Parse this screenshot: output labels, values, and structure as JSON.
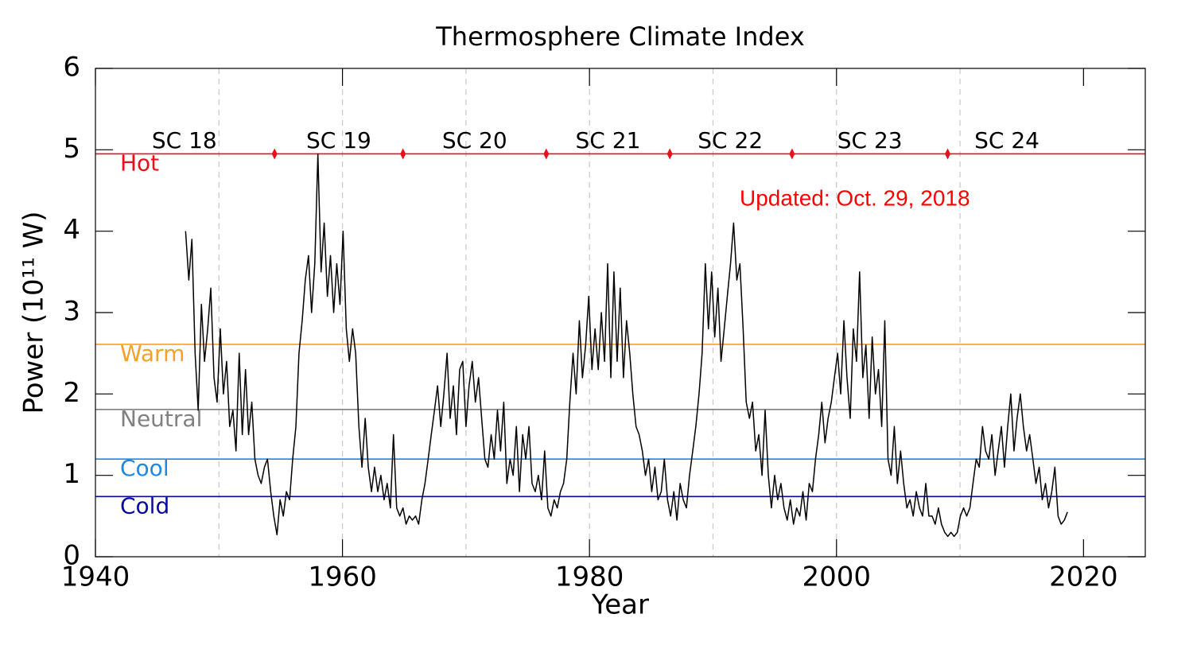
{
  "chart_data": {
    "type": "line",
    "title": "Thermosphere Climate Index",
    "xlabel": "Year",
    "ylabel": "Power (10¹¹ W)",
    "annotation": {
      "text": "Updated: Oct. 29, 2018",
      "color": "#ff0000"
    },
    "xlim": [
      1940,
      2025
    ],
    "ylim": [
      0,
      6
    ],
    "xticks": [
      1940,
      1960,
      1980,
      2000,
      2020
    ],
    "yticks": [
      0,
      1,
      2,
      3,
      4,
      5,
      6
    ],
    "xgrid": [
      1950,
      1960,
      1970,
      1980,
      1990,
      2000,
      2010
    ],
    "color": "#000000",
    "reference_lines": [
      {
        "name": "Hot",
        "value": 4.95,
        "color": "#e8101c"
      },
      {
        "name": "Warm",
        "value": 2.61,
        "color": "#f5a028"
      },
      {
        "name": "Neutral",
        "value": 1.81,
        "color": "#808080"
      },
      {
        "name": "Cool",
        "value": 1.2,
        "color": "#1e88e5"
      },
      {
        "name": "Cold",
        "value": 0.74,
        "color": "#0a0aa0"
      }
    ],
    "cycle_boundaries": [
      1954.5,
      1964.9,
      1976.5,
      1986.5,
      1996.4,
      2009.0
    ],
    "boundary_color": "#e8101c",
    "cycles": [
      {
        "label": "SC 18",
        "x": 1947.2
      },
      {
        "label": "SC 19",
        "x": 1959.7
      },
      {
        "label": "SC 20",
        "x": 1970.7
      },
      {
        "label": "SC 21",
        "x": 1981.5
      },
      {
        "label": "SC 22",
        "x": 1991.4
      },
      {
        "label": "SC 23",
        "x": 2002.7
      },
      {
        "label": "SC 24",
        "x": 2013.8
      }
    ],
    "x": [
      1947.3,
      1947.56,
      1947.81,
      1948.07,
      1948.32,
      1948.58,
      1948.83,
      1949.09,
      1949.34,
      1949.6,
      1949.85,
      1950.11,
      1950.36,
      1950.62,
      1950.87,
      1951.13,
      1951.38,
      1951.64,
      1951.89,
      1952.15,
      1952.4,
      1952.66,
      1952.91,
      1953.17,
      1953.42,
      1953.68,
      1953.93,
      1954.19,
      1954.44,
      1954.7,
      1954.95,
      1955.21,
      1955.46,
      1955.72,
      1955.97,
      1956.23,
      1956.48,
      1956.74,
      1956.99,
      1957.25,
      1957.5,
      1957.76,
      1958.01,
      1958.27,
      1958.52,
      1958.78,
      1959.03,
      1959.29,
      1959.54,
      1959.8,
      1960.05,
      1960.31,
      1960.56,
      1960.82,
      1961.07,
      1961.33,
      1961.58,
      1961.84,
      1962.09,
      1962.35,
      1962.6,
      1962.86,
      1963.11,
      1963.37,
      1963.62,
      1963.88,
      1964.13,
      1964.39,
      1964.64,
      1964.9,
      1965.15,
      1965.41,
      1965.66,
      1965.92,
      1966.17,
      1966.43,
      1966.68,
      1966.94,
      1967.19,
      1967.45,
      1967.7,
      1967.96,
      1968.21,
      1968.47,
      1968.72,
      1968.98,
      1969.23,
      1969.49,
      1969.74,
      1970,
      1970.25,
      1970.51,
      1970.76,
      1971.02,
      1971.27,
      1971.53,
      1971.78,
      1972.04,
      1972.29,
      1972.55,
      1972.8,
      1973.06,
      1973.31,
      1973.57,
      1973.82,
      1974.08,
      1974.33,
      1974.59,
      1974.84,
      1975.1,
      1975.35,
      1975.61,
      1975.86,
      1976.12,
      1976.37,
      1976.63,
      1976.88,
      1977.14,
      1977.39,
      1977.65,
      1977.9,
      1978.16,
      1978.41,
      1978.67,
      1978.92,
      1979.18,
      1979.43,
      1979.69,
      1979.94,
      1980.2,
      1980.45,
      1980.71,
      1980.96,
      1981.22,
      1981.47,
      1981.73,
      1981.98,
      1982.24,
      1982.49,
      1982.75,
      1983,
      1983.26,
      1983.51,
      1983.77,
      1984.02,
      1984.28,
      1984.53,
      1984.79,
      1985.04,
      1985.3,
      1985.55,
      1985.81,
      1986.06,
      1986.32,
      1986.57,
      1986.83,
      1987.08,
      1987.34,
      1987.59,
      1987.85,
      1988.1,
      1988.36,
      1988.61,
      1988.87,
      1989.12,
      1989.38,
      1989.63,
      1989.89,
      1990.14,
      1990.4,
      1990.65,
      1990.91,
      1991.16,
      1991.42,
      1991.67,
      1991.93,
      1992.18,
      1992.44,
      1992.69,
      1992.95,
      1993.2,
      1993.46,
      1993.71,
      1993.97,
      1994.22,
      1994.48,
      1994.73,
      1994.99,
      1995.24,
      1995.5,
      1995.75,
      1996.01,
      1996.26,
      1996.52,
      1996.77,
      1997.03,
      1997.28,
      1997.54,
      1997.79,
      1998.05,
      1998.3,
      1998.56,
      1998.81,
      1999.07,
      1999.32,
      1999.58,
      1999.83,
      2000.09,
      2000.34,
      2000.6,
      2000.85,
      2001.11,
      2001.36,
      2001.62,
      2001.87,
      2002.13,
      2002.38,
      2002.64,
      2002.89,
      2003.15,
      2003.4,
      2003.66,
      2003.91,
      2004.17,
      2004.42,
      2004.68,
      2004.93,
      2005.19,
      2005.44,
      2005.7,
      2005.95,
      2006.21,
      2006.46,
      2006.72,
      2006.97,
      2007.23,
      2007.48,
      2007.74,
      2007.99,
      2008.25,
      2008.5,
      2008.76,
      2009.01,
      2009.27,
      2009.52,
      2009.78,
      2010.03,
      2010.29,
      2010.54,
      2010.8,
      2011.05,
      2011.31,
      2011.56,
      2011.82,
      2012.07,
      2012.33,
      2012.58,
      2012.84,
      2013.09,
      2013.35,
      2013.6,
      2013.86,
      2014.11,
      2014.37,
      2014.62,
      2014.88,
      2015.13,
      2015.39,
      2015.64,
      2015.9,
      2016.15,
      2016.41,
      2016.66,
      2016.92,
      2017.17,
      2017.43,
      2017.68,
      2017.94,
      2018.19,
      2018.45,
      2018.7
    ],
    "values": [
      4.0,
      3.4,
      3.9,
      2.5,
      1.8,
      3.1,
      2.4,
      2.8,
      3.3,
      2.2,
      1.9,
      2.8,
      2.0,
      2.4,
      1.6,
      1.8,
      1.3,
      2.5,
      1.5,
      2.3,
      1.5,
      1.9,
      1.2,
      1.0,
      0.9,
      1.1,
      1.2,
      0.8,
      0.5,
      0.27,
      0.7,
      0.5,
      0.8,
      0.7,
      1.2,
      1.6,
      2.5,
      2.9,
      3.4,
      3.7,
      3.0,
      3.6,
      4.95,
      3.5,
      4.1,
      3.2,
      3.7,
      3.0,
      3.6,
      3.1,
      4.0,
      2.8,
      2.4,
      2.8,
      2.5,
      1.6,
      1.1,
      1.7,
      1.1,
      0.8,
      1.1,
      0.8,
      1.0,
      0.7,
      0.9,
      0.6,
      1.5,
      0.6,
      0.5,
      0.6,
      0.4,
      0.5,
      0.45,
      0.5,
      0.4,
      0.7,
      0.9,
      1.2,
      1.5,
      1.8,
      2.1,
      1.6,
      2.0,
      2.5,
      1.7,
      2.1,
      1.5,
      2.3,
      2.4,
      1.6,
      2.1,
      2.4,
      1.9,
      2.2,
      1.7,
      1.2,
      1.1,
      1.5,
      1.2,
      1.8,
      1.3,
      1.9,
      0.9,
      1.2,
      1.0,
      1.6,
      0.8,
      1.5,
      1.2,
      1.6,
      0.9,
      0.8,
      1.0,
      0.7,
      1.3,
      0.6,
      0.5,
      0.7,
      0.6,
      0.8,
      0.9,
      1.2,
      1.9,
      2.5,
      2.0,
      2.9,
      2.2,
      2.6,
      3.2,
      2.3,
      2.8,
      2.3,
      3.0,
      2.4,
      3.6,
      2.2,
      3.5,
      2.4,
      3.3,
      2.2,
      2.9,
      2.5,
      2.0,
      1.6,
      1.5,
      1.3,
      1.0,
      1.2,
      0.8,
      1.1,
      0.7,
      0.8,
      1.2,
      0.7,
      0.5,
      0.8,
      0.45,
      0.9,
      0.7,
      0.6,
      1.0,
      1.3,
      1.6,
      2.0,
      2.5,
      3.6,
      2.8,
      3.5,
      2.7,
      3.3,
      2.4,
      2.8,
      3.2,
      3.6,
      4.1,
      3.4,
      3.6,
      2.8,
      1.9,
      1.7,
      1.9,
      1.3,
      1.5,
      1.0,
      1.8,
      1.0,
      0.6,
      1.0,
      0.7,
      0.9,
      0.6,
      0.45,
      0.7,
      0.4,
      0.6,
      0.5,
      0.8,
      0.45,
      0.9,
      0.8,
      1.2,
      1.5,
      1.9,
      1.4,
      1.7,
      1.9,
      2.2,
      2.5,
      2.0,
      2.9,
      2.2,
      1.7,
      2.8,
      2.4,
      3.5,
      2.2,
      2.6,
      1.7,
      2.7,
      2.0,
      2.3,
      1.6,
      2.9,
      1.2,
      1.0,
      1.6,
      0.9,
      1.3,
      0.9,
      0.6,
      0.7,
      0.5,
      0.8,
      0.6,
      0.5,
      0.9,
      0.5,
      0.5,
      0.4,
      0.6,
      0.4,
      0.3,
      0.25,
      0.3,
      0.25,
      0.3,
      0.5,
      0.6,
      0.5,
      0.6,
      0.9,
      1.2,
      1.1,
      1.6,
      1.3,
      1.2,
      1.5,
      1.0,
      1.3,
      1.6,
      1.1,
      1.6,
      2.0,
      1.3,
      1.7,
      2.0,
      1.6,
      1.3,
      1.5,
      1.2,
      0.9,
      1.1,
      0.7,
      0.9,
      0.6,
      0.8,
      1.1,
      0.5,
      0.4,
      0.45,
      0.55
    ]
  }
}
